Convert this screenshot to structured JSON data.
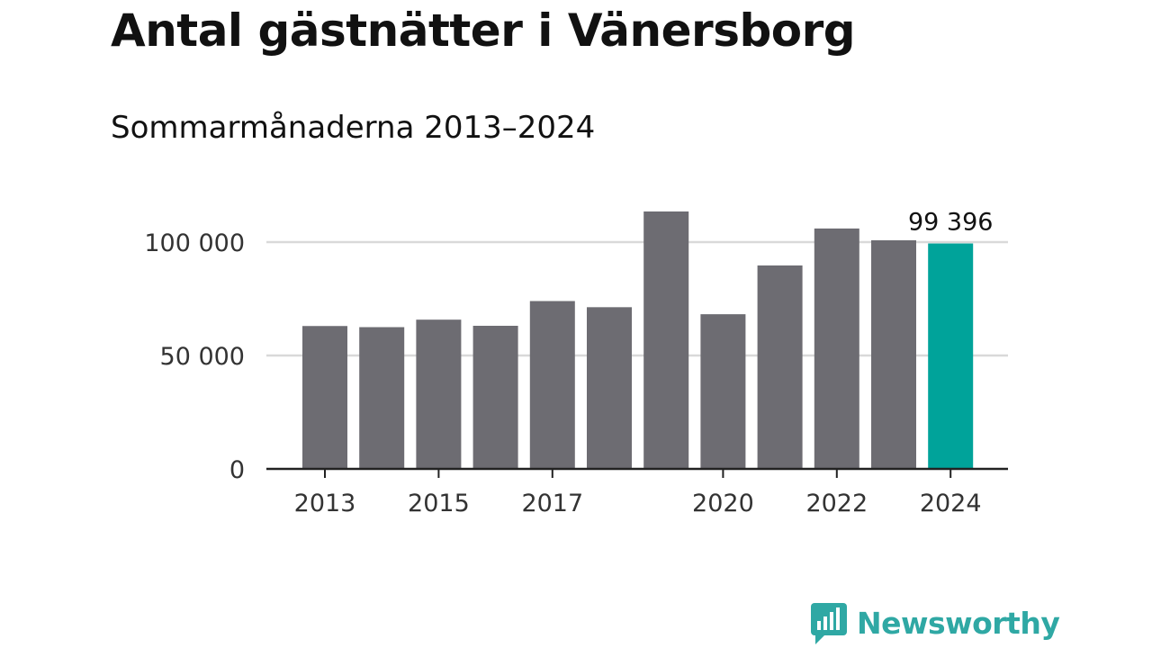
{
  "header": {
    "title": "Antal gästnätter i Vänersborg",
    "subtitle": "Sommarmånaderna 2013–2024"
  },
  "brand": {
    "logo_text": "Newsworthy",
    "logo_color": "#2fa8a4"
  },
  "colors": {
    "bar": "#6d6c72",
    "highlight": "#00a39a",
    "grid": "#d9d9d9",
    "axis": "#222222"
  },
  "chart_data": {
    "type": "bar",
    "title": "Antal gästnätter i Vänersborg",
    "subtitle": "Sommarmånaderna 2013–2024",
    "categories": [
      "2013",
      "2014",
      "2015",
      "2016",
      "2017",
      "2018",
      "2019",
      "2020",
      "2021",
      "2022",
      "2023",
      "2024"
    ],
    "values": [
      63000,
      62500,
      65800,
      63100,
      74000,
      71300,
      113500,
      68200,
      89700,
      106000,
      100800,
      99396
    ],
    "highlight_index": 11,
    "highlight_label": "99 396",
    "x_tick_labels": [
      "2013",
      "2015",
      "2017",
      "2020",
      "2022",
      "2024"
    ],
    "y_ticks": [
      0,
      50000,
      100000
    ],
    "y_tick_labels": [
      "0",
      "50 000",
      "100 000"
    ],
    "ylim": [
      0,
      120000
    ],
    "xlabel": "",
    "ylabel": "",
    "grid": true,
    "legend": "none"
  }
}
